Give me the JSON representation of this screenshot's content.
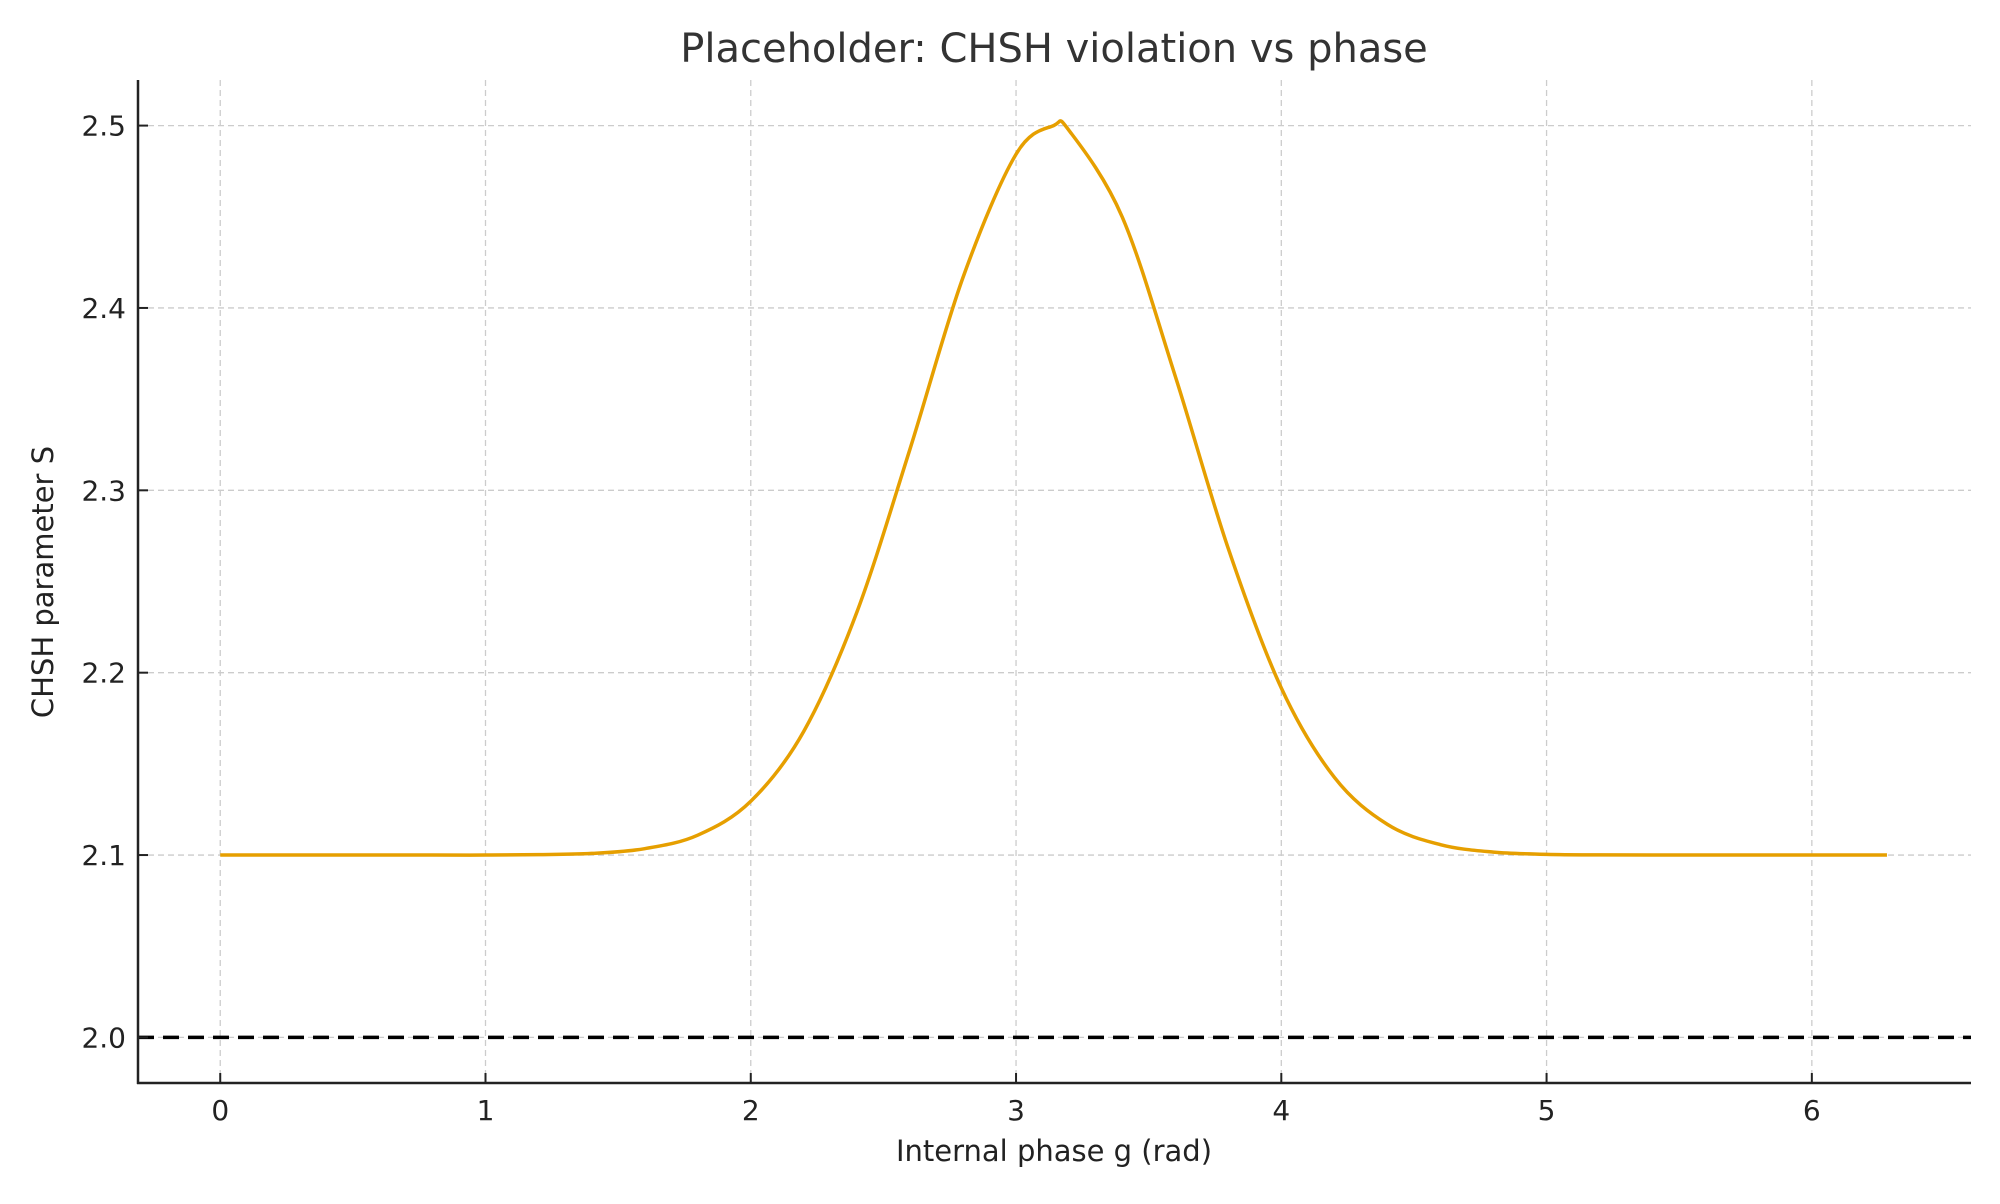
{
  "chart_data": {
    "type": "line",
    "title": "Placeholder: CHSH violation vs phase",
    "xlabel": "Internal phase g (rad)",
    "ylabel": "CHSH parameter S",
    "xlim": [
      -0.31,
      6.6
    ],
    "ylim": [
      1.975,
      2.525
    ],
    "xticks": [
      0,
      1,
      2,
      3,
      4,
      5,
      6
    ],
    "xtick_labels": [
      "0",
      "1",
      "2",
      "3",
      "4",
      "5",
      "6"
    ],
    "yticks": [
      2.0,
      2.1,
      2.2,
      2.3,
      2.4,
      2.5
    ],
    "ytick_labels": [
      "2.0",
      "2.1",
      "2.2",
      "2.3",
      "2.4",
      "2.5"
    ],
    "grid": true,
    "series": [
      {
        "color": "#E69F00",
        "style": "solid",
        "x": [
          0,
          0.4,
          0.8,
          1.0,
          1.2,
          1.4,
          1.6,
          1.8,
          2.0,
          2.2,
          2.4,
          2.6,
          2.8,
          3.0,
          3.1416,
          3.2,
          3.4,
          3.6,
          3.8,
          4.0,
          4.2,
          4.4,
          4.6,
          4.8,
          5.0,
          5.2,
          5.6,
          6.0,
          6.2832
        ],
        "y": [
          2.1,
          2.1,
          2.1,
          2.1,
          2.1002,
          2.1009,
          2.1035,
          2.1109,
          2.1295,
          2.1679,
          2.2332,
          2.3225,
          2.4167,
          2.4843,
          2.5,
          2.4973,
          2.45,
          2.3627,
          2.2681,
          2.1916,
          2.1426,
          2.1168,
          2.1057,
          2.1016,
          2.1004,
          2.1001,
          2.1,
          2.1,
          2.1
        ]
      }
    ],
    "reference_lines": [
      {
        "y": 2.0,
        "color": "#000000",
        "style": "dashed"
      }
    ]
  }
}
